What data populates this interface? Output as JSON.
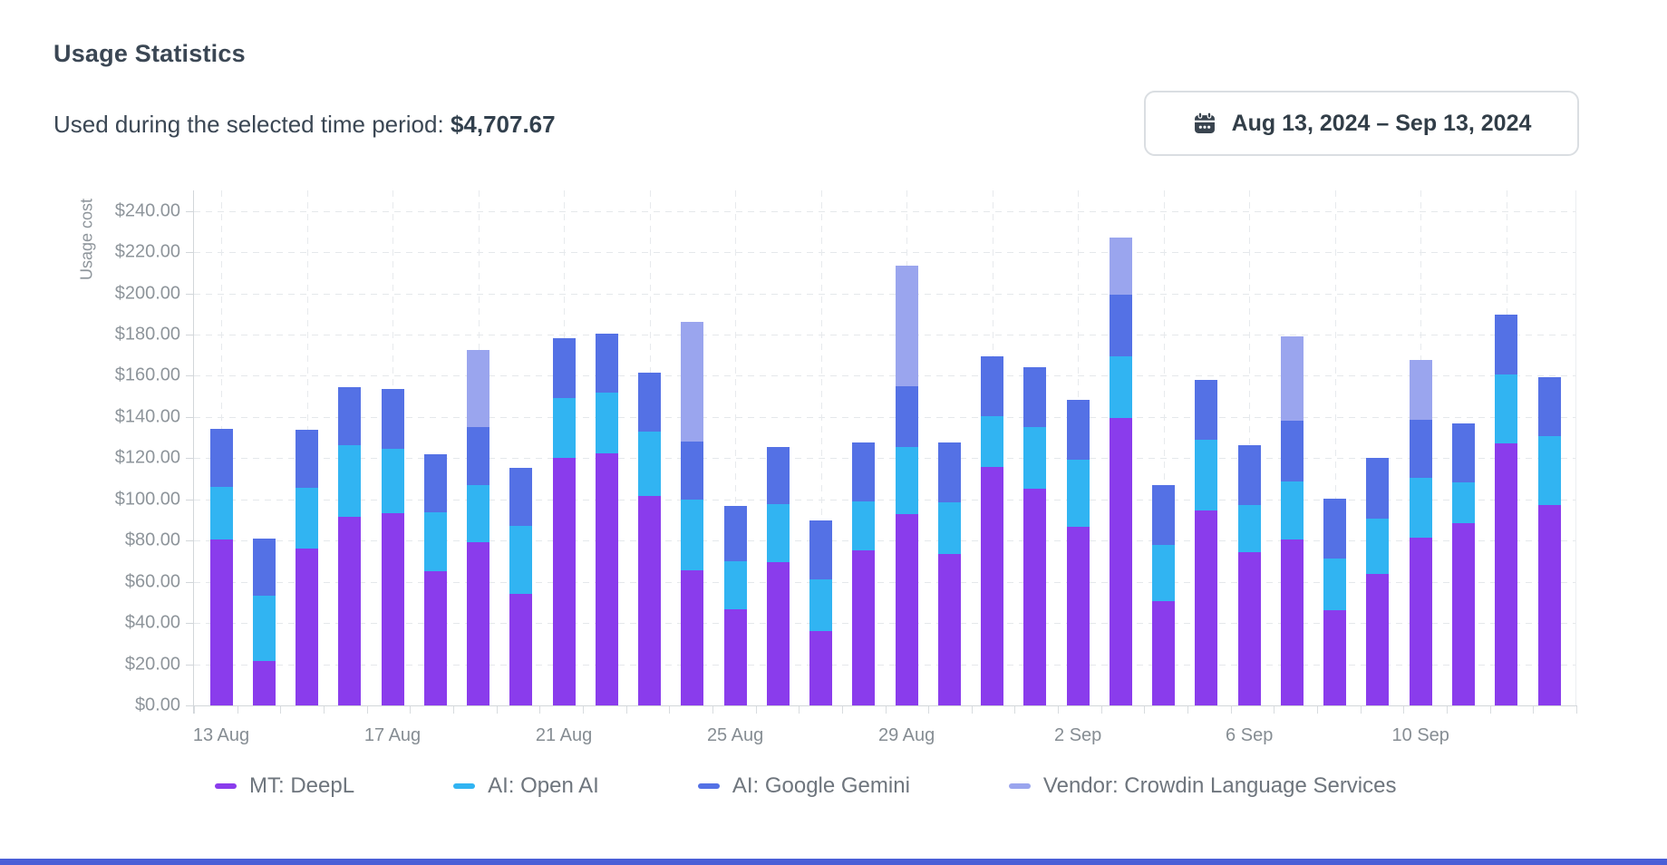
{
  "header": {
    "title": "Usage Statistics"
  },
  "summary": {
    "label": "Used during the selected time period:",
    "amount": "$4,707.67"
  },
  "date_picker": {
    "icon": "calendar-icon",
    "range": "Aug 13, 2024 – Sep 13, 2024"
  },
  "chart_data": {
    "type": "bar",
    "stacked": true,
    "title": "Usage Statistics",
    "xlabel": "",
    "ylabel": "Usage cost",
    "ylim": [
      0,
      250
    ],
    "ytick_step": 20,
    "ytick_max": 240,
    "ytick_prefix": "$",
    "grid": true,
    "legend_position": "bottom",
    "total_for_period": 4707.67,
    "categories": [
      "13 Aug",
      "14 Aug",
      "15 Aug",
      "16 Aug",
      "17 Aug",
      "18 Aug",
      "19 Aug",
      "20 Aug",
      "21 Aug",
      "22 Aug",
      "23 Aug",
      "24 Aug",
      "25 Aug",
      "26 Aug",
      "27 Aug",
      "28 Aug",
      "29 Aug",
      "30 Aug",
      "31 Aug",
      "1 Sep",
      "2 Sep",
      "3 Sep",
      "4 Sep",
      "5 Sep",
      "6 Sep",
      "7 Sep",
      "8 Sep",
      "9 Sep",
      "10 Sep",
      "11 Sep",
      "12 Sep",
      "13 Sep"
    ],
    "x_label_indices": [
      0,
      4,
      8,
      12,
      16,
      20,
      24,
      28
    ],
    "series": [
      {
        "name": "MT: DeepL",
        "color": "#8a3cec",
        "values": [
          80.7,
          21.67,
          76.3,
          91.7,
          93.5,
          65.0,
          79.3,
          54.3,
          120.0,
          122.5,
          101.8,
          65.8,
          46.8,
          69.5,
          35.9,
          75.2,
          92.8,
          73.5,
          115.6,
          105.0,
          86.5,
          139.6,
          50.6,
          94.5,
          74.3,
          80.4,
          46.2,
          63.8,
          81.4,
          88.4,
          127.4,
          97.3
        ]
      },
      {
        "name": "AI: Open AI",
        "color": "#31b4f2",
        "values": [
          25.2,
          31.8,
          29.2,
          34.5,
          31.0,
          28.9,
          27.6,
          32.8,
          29.2,
          29.3,
          31.0,
          34.0,
          23.0,
          28.3,
          25.3,
          23.8,
          32.5,
          25.2,
          24.6,
          30.3,
          33.0,
          30.0,
          27.3,
          34.6,
          23.2,
          28.2,
          25.3,
          26.9,
          29.0,
          19.8,
          33.3,
          33.4
        ]
      },
      {
        "name": "AI: Google Gemini",
        "color": "#5471e5",
        "values": [
          28.3,
          27.6,
          28.3,
          28.1,
          29.0,
          28.1,
          28.4,
          28.4,
          28.9,
          28.5,
          28.7,
          28.4,
          27.2,
          27.6,
          28.6,
          28.5,
          29.8,
          28.8,
          29.4,
          29.0,
          28.8,
          29.7,
          29.2,
          28.7,
          28.8,
          29.6,
          28.9,
          29.4,
          28.3,
          28.6,
          29.1,
          28.8
        ]
      },
      {
        "name": "Vendor: Crowdin Language Services",
        "color": "#9aa5ee",
        "values": [
          0,
          0,
          0,
          0,
          0,
          0,
          37.1,
          0,
          0,
          0,
          0,
          58.0,
          0,
          0,
          0,
          0,
          58.3,
          0,
          0,
          0,
          0,
          28.0,
          0,
          0,
          0,
          41.1,
          0,
          0,
          28.9,
          0,
          0,
          0
        ]
      }
    ]
  }
}
